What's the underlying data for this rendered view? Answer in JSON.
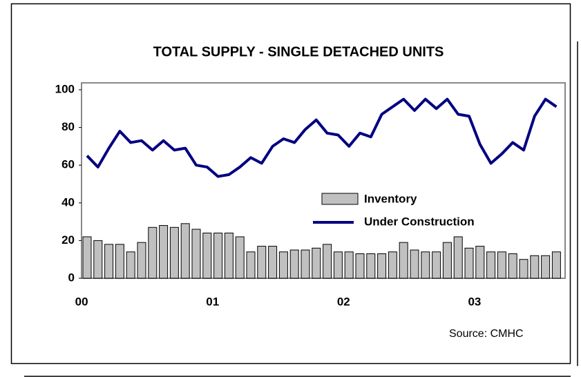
{
  "chart_data": {
    "type": "bar-line",
    "title": "TOTAL SUPPLY - SINGLE DETACHED UNITS",
    "source": "Source:  CMHC",
    "categories": [
      "00",
      null,
      null,
      null,
      null,
      null,
      null,
      null,
      null,
      null,
      null,
      null,
      "01",
      null,
      null,
      null,
      null,
      null,
      null,
      null,
      null,
      null,
      null,
      null,
      "02",
      null,
      null,
      null,
      null,
      null,
      null,
      null,
      null,
      null,
      null,
      null,
      "03",
      null,
      null,
      null,
      null,
      null,
      null,
      null
    ],
    "series": [
      {
        "name": "Inventory",
        "kind": "bar",
        "color": "#c0c0c0",
        "values": [
          22,
          20,
          18,
          18,
          14,
          19,
          27,
          28,
          27,
          29,
          26,
          24,
          24,
          24,
          22,
          14,
          17,
          17,
          14,
          15,
          15,
          16,
          18,
          14,
          14,
          13,
          13,
          13,
          14,
          19,
          15,
          14,
          14,
          19,
          22,
          16,
          17,
          14,
          14,
          13,
          10,
          12,
          12,
          14
        ]
      },
      {
        "name": "Under Construction",
        "kind": "line",
        "color": "#000080",
        "values": [
          65,
          59,
          69,
          78,
          72,
          73,
          68,
          73,
          68,
          69,
          60,
          59,
          54,
          55,
          59,
          64,
          61,
          70,
          74,
          72,
          79,
          84,
          77,
          76,
          70,
          77,
          75,
          87,
          91,
          95,
          89,
          95,
          90,
          95,
          87,
          86,
          71,
          61,
          66,
          72,
          68,
          86,
          95,
          91
        ]
      }
    ],
    "ylim": [
      0,
      100
    ],
    "yticks": [
      0,
      20,
      40,
      60,
      80,
      100
    ],
    "grid": false
  }
}
